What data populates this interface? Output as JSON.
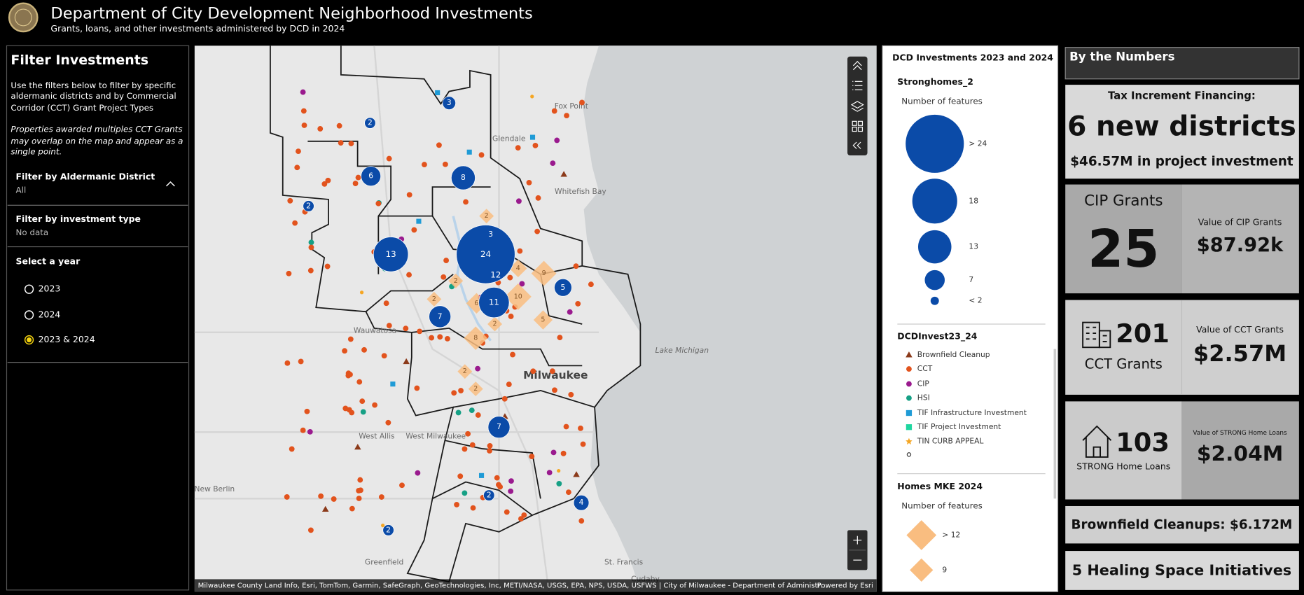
{
  "header": {
    "title": "Department of City Development Neighborhood Investments",
    "subtitle": "Grants, loans, and other investments administered by DCD in 2024"
  },
  "filters": {
    "title": "Filter Investments",
    "description": [
      "Use the filters below to filter by specific",
      "aldermanic districts and by Commercial",
      "Corridor (CCT) Grant Project Types"
    ],
    "note": [
      "Properties awarded multiples CCT Grants",
      "may overlap on the map and appear as a",
      "single point."
    ],
    "district": {
      "label": "Filter by Aldermanic District",
      "value": "All"
    },
    "investment_type": {
      "label": "Filter by investment type",
      "value": "No data"
    },
    "year": {
      "label": "Select a year",
      "options": [
        "2023",
        "2024",
        "2023 & 2024"
      ],
      "selected": 2
    }
  },
  "map": {
    "places": [
      "Fox Point",
      "Glendale",
      "Whitefish Bay",
      "Wauwatosa",
      "Milwaukee",
      "West Allis",
      "West Milwaukee",
      "New Berlin",
      "Greenfield",
      "St. Francis",
      "Lake Michigan",
      "Cudahy"
    ],
    "clusters": [
      24,
      3,
      2,
      6,
      8,
      2,
      13,
      3,
      12,
      5,
      11,
      7,
      7,
      2,
      4,
      2
    ],
    "homes": [
      2,
      4,
      9,
      2,
      10,
      2,
      6,
      5,
      2,
      8,
      2,
      2
    ],
    "attribution": "Milwaukee County Land Info, Esri, TomTom, Garmin, SafeGraph, GeoTechnologies, Inc, METI/NASA, USGS, EPA, NPS, USDA, USFWS | City of Milwaukee - Department of Administr…",
    "powered_by": "Powered by Esri"
  },
  "legend": {
    "title": "DCD Investments 2023 and 2024",
    "stronghomes": {
      "title": "Stronghomes_2",
      "subtitle": "Number of features",
      "sizes": [
        "> 24",
        "18",
        "13",
        "7",
        "< 2"
      ]
    },
    "investments": {
      "title": "DCDInvest23_24",
      "items": [
        "Brownfield Cleanup",
        "CCT",
        "CIP",
        "HSI",
        "TIF Infrastructure Investment",
        "TIF Project Investment",
        "TIN CURB APPEAL"
      ]
    },
    "homes": {
      "title": "Homes MKE 2024",
      "subtitle": "Number of features",
      "sizes": [
        "> 12",
        "9"
      ]
    }
  },
  "numbers": {
    "title": "By the Numbers",
    "tif": {
      "label": "Tax Increment Financing:",
      "headline": "6 new districts",
      "detail": "$46.57M in project investment"
    },
    "cip": {
      "label": "CIP Grants",
      "count": 25,
      "value_label": "Value of CIP Grants",
      "value": "$87.92k"
    },
    "cct": {
      "label": "CCT Grants",
      "count": 201,
      "value_label": "Value of CCT Grants",
      "value": "$2.57M"
    },
    "strong": {
      "label": "STRONG Home Loans",
      "count": 103,
      "value_label": "Value of STRONG Home Loans",
      "value": "$2.04M"
    },
    "brownfield": "Brownfield Cleanups: $6.172M",
    "healing": "5 Healing Space Initiatives"
  }
}
